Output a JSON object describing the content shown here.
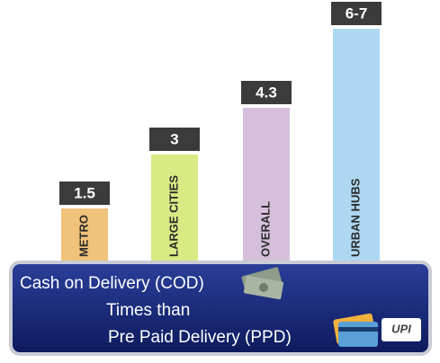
{
  "chart_data": {
    "type": "bar",
    "categories": [
      "METRO",
      "LARGE CITIES",
      "OVERALL",
      "URBAN HUBS"
    ],
    "values": [
      1.5,
      3,
      4.3,
      6.5
    ],
    "value_labels": [
      "1.5",
      "3",
      "4.3",
      "6-7"
    ],
    "colors": [
      "#f1c27a",
      "#d8ea84",
      "#d6bfdc",
      "#aed8f2"
    ]
  },
  "banner": {
    "lines": [
      "Cash on Delivery (COD)",
      "Times than",
      "Pre Paid Delivery (PPD)"
    ],
    "logo": "UPI"
  }
}
